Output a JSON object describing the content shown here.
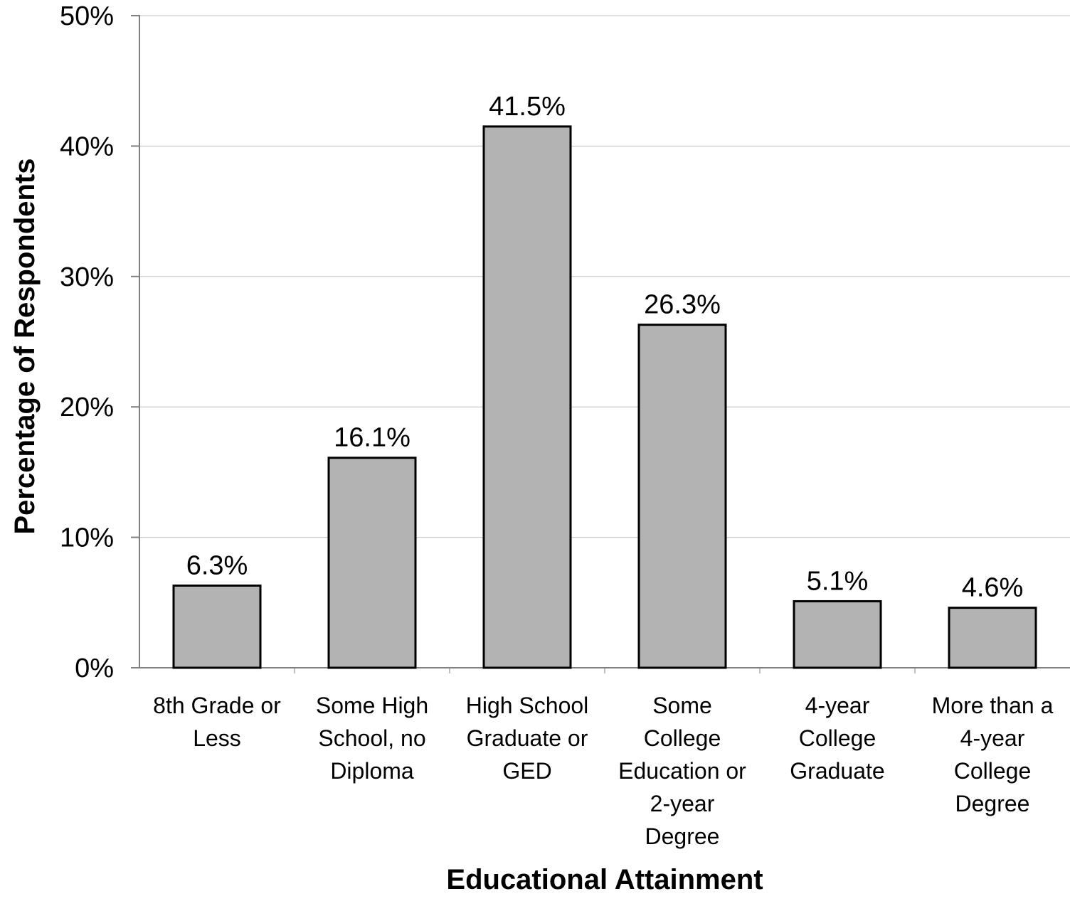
{
  "chart_data": {
    "type": "bar",
    "categories": [
      [
        "8th Grade or",
        "Less"
      ],
      [
        "Some High",
        "School, no",
        "Diploma"
      ],
      [
        "High School",
        "Graduate or",
        "GED"
      ],
      [
        "Some",
        "College",
        "Education or",
        "2-year",
        "Degree"
      ],
      [
        "4-year",
        "College",
        "Graduate"
      ],
      [
        "More than a",
        "4-year",
        "College",
        "Degree"
      ]
    ],
    "values": [
      6.3,
      16.1,
      41.5,
      26.3,
      5.1,
      4.6
    ],
    "data_labels": [
      "6.3%",
      "16.1%",
      "41.5%",
      "26.3%",
      "5.1%",
      "4.6%"
    ],
    "xlabel": "Educational Attainment",
    "ylabel": "Percentage of Respondents",
    "ylim": [
      0,
      50
    ],
    "yticks": [
      0,
      10,
      20,
      30,
      40,
      50
    ],
    "ytick_labels": [
      "0%",
      "10%",
      "20%",
      "30%",
      "40%",
      "50%"
    ],
    "grid": true,
    "colors": {
      "bar_fill": "#b3b3b3",
      "bar_stroke": "#000000",
      "grid": "#c0c0c0",
      "axis": "#808080"
    }
  }
}
